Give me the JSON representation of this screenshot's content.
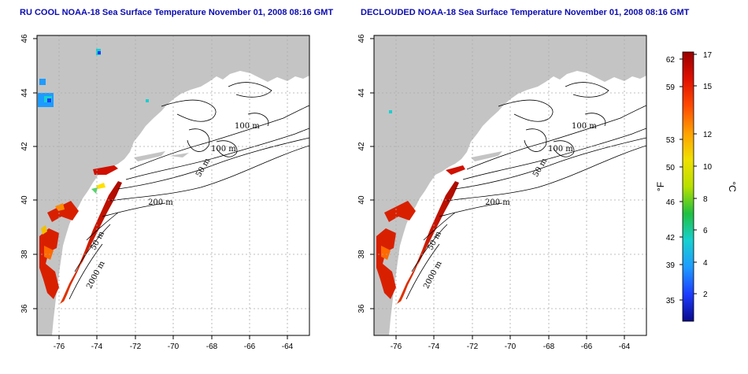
{
  "panels": [
    {
      "title": "RU COOL NOAA-18 Sea Surface Temperature November 01, 2008 08:16 GMT",
      "x_ticks": [
        "-76",
        "-74",
        "-72",
        "-70",
        "-68",
        "-66",
        "-64"
      ],
      "y_ticks": [
        "46",
        "44",
        "42",
        "40",
        "38",
        "36"
      ],
      "contour_labels": [
        "100 m",
        "100 m",
        "50 m",
        "200 m",
        "50 m",
        "2000 m"
      ]
    },
    {
      "title": "DECLOUDED NOAA-18 Sea Surface Temperature November 01, 2008 08:16 GMT",
      "x_ticks": [
        "-76",
        "-74",
        "-72",
        "-70",
        "-68",
        "-66",
        "-64"
      ],
      "y_ticks": [
        "46",
        "44",
        "42",
        "40",
        "38",
        "36"
      ],
      "contour_labels": [
        "100 m",
        "100 m",
        "50 m",
        "200 m",
        "50 m",
        "2000 m"
      ]
    }
  ],
  "colorbar": {
    "f_ticks": [
      "62",
      "59",
      "53",
      "50",
      "46",
      "42",
      "39",
      "35"
    ],
    "c_ticks": [
      "17",
      "15",
      "12",
      "10",
      "8",
      "6",
      "4",
      "2"
    ],
    "f_unit": "°F",
    "c_unit": "°C",
    "colors": [
      "#0a0a8c",
      "#1c3cff",
      "#1e9bff",
      "#17d0d0",
      "#20c040",
      "#b8e000",
      "#f0e000",
      "#ffa000",
      "#ff4a00",
      "#e01000",
      "#9a0000"
    ]
  },
  "map_colors": {
    "land": "#c4c4c4",
    "sst_warm": "#d01800",
    "sst_mid": "#ff5a00",
    "contour": "#000000",
    "grid": "#aaaaaa"
  }
}
